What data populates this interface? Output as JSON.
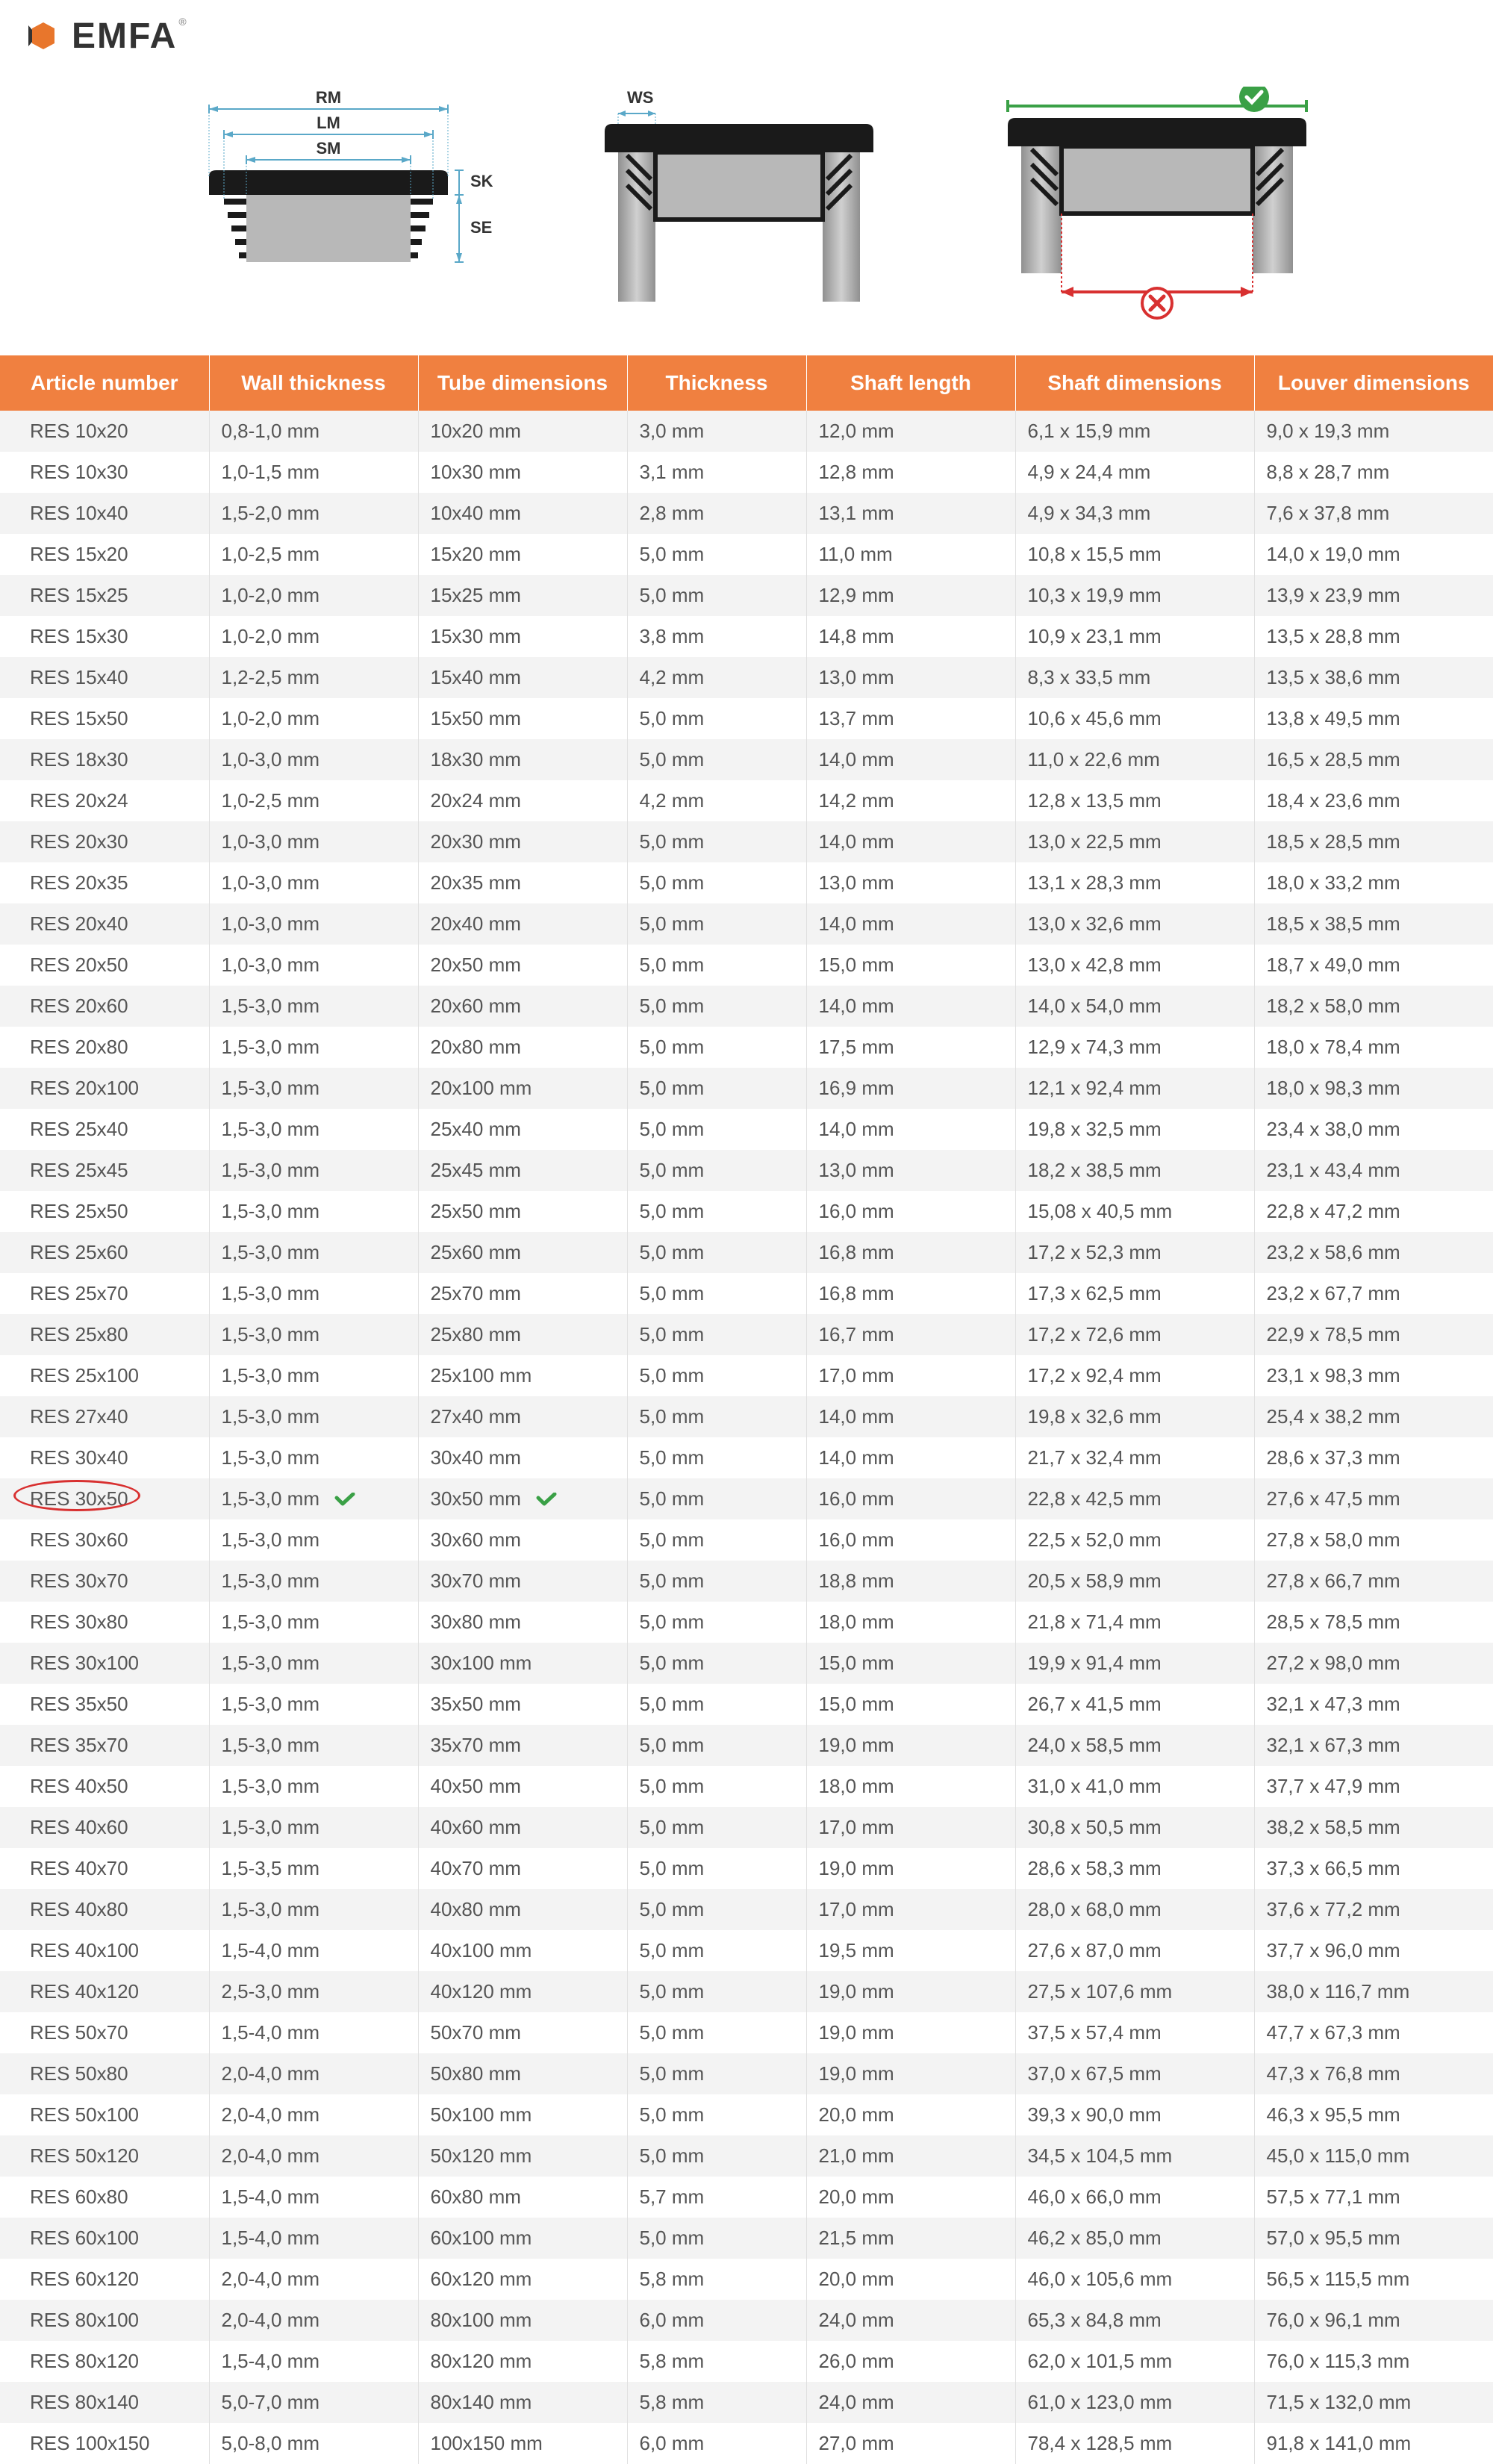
{
  "brand": {
    "name": "EMFA",
    "logo_primary_color": "#e8762c",
    "logo_dark_color": "#333333"
  },
  "diagram_labels": {
    "rm": "RM",
    "lm": "LM",
    "sm": "SM",
    "sk": "SK",
    "se": "SE",
    "ws": "WS"
  },
  "diagram_colors": {
    "cap_black": "#1a1a1a",
    "tube_gray": "#b8b8b8",
    "tube_gradient_light": "#d0d0d0",
    "tube_gradient_dark": "#909090",
    "dim_line_blue": "#5aa8c8",
    "check_green": "#3aa046",
    "cross_red": "#d83030",
    "arrow_red": "#d83030"
  },
  "table": {
    "header_bg": "#f08040",
    "header_fg": "#ffffff",
    "row_odd_bg": "#f3f3f3",
    "row_even_bg": "#ffffff",
    "border_color": "#e0e0e0",
    "highlight_color": "#d83030",
    "check_color": "#3aa046",
    "columns": [
      "Article number",
      "Wall thickness",
      "Tube dimensions",
      "Thickness",
      "Shaft length",
      "Shaft dimensions",
      "Louver dimensions"
    ],
    "highlighted_row_index": 25,
    "rows": [
      [
        "RES 10x20",
        "0,8-1,0 mm",
        "10x20 mm",
        "3,0 mm",
        "12,0 mm",
        "6,1 x 15,9 mm",
        "9,0 x 19,3 mm"
      ],
      [
        "RES 10x30",
        "1,0-1,5 mm",
        "10x30 mm",
        "3,1 mm",
        "12,8 mm",
        "4,9 x 24,4 mm",
        "8,8 x 28,7 mm"
      ],
      [
        "RES 10x40",
        "1,5-2,0 mm",
        "10x40 mm",
        "2,8 mm",
        "13,1 mm",
        "4,9 x 34,3 mm",
        "7,6 x 37,8 mm"
      ],
      [
        "RES 15x20",
        "1,0-2,5 mm",
        "15x20 mm",
        "5,0 mm",
        "11,0 mm",
        "10,8 x 15,5 mm",
        "14,0 x 19,0 mm"
      ],
      [
        "RES 15x25",
        "1,0-2,0 mm",
        "15x25 mm",
        "5,0 mm",
        "12,9 mm",
        "10,3 x 19,9 mm",
        "13,9 x 23,9 mm"
      ],
      [
        "RES 15x30",
        "1,0-2,0 mm",
        "15x30 mm",
        "3,8 mm",
        "14,8 mm",
        "10,9 x 23,1 mm",
        "13,5 x 28,8 mm"
      ],
      [
        "RES 15x40",
        "1,2-2,5 mm",
        "15x40 mm",
        "4,2 mm",
        "13,0 mm",
        "8,3 x 33,5 mm",
        "13,5 x 38,6 mm"
      ],
      [
        "RES 15x50",
        "1,0-2,0 mm",
        "15x50 mm",
        "5,0 mm",
        "13,7 mm",
        "10,6 x 45,6 mm",
        "13,8 x 49,5 mm"
      ],
      [
        "RES 18x30",
        "1,0-3,0 mm",
        "18x30 mm",
        "5,0 mm",
        "14,0 mm",
        "11,0 x 22,6 mm",
        "16,5 x 28,5 mm"
      ],
      [
        "RES 20x24",
        "1,0-2,5 mm",
        "20x24 mm",
        "4,2 mm",
        "14,2 mm",
        "12,8 x 13,5 mm",
        "18,4 x 23,6 mm"
      ],
      [
        "RES 20x30",
        "1,0-3,0 mm",
        "20x30 mm",
        "5,0 mm",
        "14,0 mm",
        "13,0 x 22,5 mm",
        "18,5 x 28,5 mm"
      ],
      [
        "RES 20x35",
        "1,0-3,0 mm",
        "20x35 mm",
        "5,0 mm",
        "13,0 mm",
        "13,1 x 28,3 mm",
        "18,0 x 33,2 mm"
      ],
      [
        "RES 20x40",
        "1,0-3,0 mm",
        "20x40 mm",
        "5,0 mm",
        "14,0 mm",
        "13,0 x 32,6 mm",
        "18,5 x 38,5 mm"
      ],
      [
        "RES 20x50",
        "1,0-3,0 mm",
        "20x50 mm",
        "5,0 mm",
        "15,0 mm",
        "13,0 x 42,8 mm",
        "18,7 x 49,0 mm"
      ],
      [
        "RES 20x60",
        "1,5-3,0 mm",
        "20x60 mm",
        "5,0 mm",
        "14,0 mm",
        "14,0 x 54,0 mm",
        "18,2 x 58,0 mm"
      ],
      [
        "RES 20x80",
        "1,5-3,0 mm",
        "20x80 mm",
        "5,0 mm",
        "17,5 mm",
        "12,9 x 74,3 mm",
        "18,0 x 78,4 mm"
      ],
      [
        "RES 20x100",
        "1,5-3,0 mm",
        "20x100 mm",
        "5,0 mm",
        "16,9 mm",
        "12,1 x 92,4 mm",
        "18,0 x 98,3 mm"
      ],
      [
        "RES 25x40",
        "1,5-3,0 mm",
        "25x40 mm",
        "5,0 mm",
        "14,0 mm",
        "19,8 x 32,5 mm",
        "23,4 x 38,0 mm"
      ],
      [
        "RES 25x45",
        "1,5-3,0 mm",
        "25x45 mm",
        "5,0 mm",
        "13,0 mm",
        "18,2 x 38,5 mm",
        "23,1 x 43,4 mm"
      ],
      [
        "RES 25x50",
        "1,5-3,0 mm",
        "25x50 mm",
        "5,0 mm",
        "16,0 mm",
        "15,08 x 40,5 mm",
        "22,8 x 47,2 mm"
      ],
      [
        "RES 25x60",
        "1,5-3,0 mm",
        "25x60 mm",
        "5,0 mm",
        "16,8 mm",
        "17,2 x 52,3 mm",
        "23,2 x 58,6 mm"
      ],
      [
        "RES 25x70",
        "1,5-3,0 mm",
        "25x70 mm",
        "5,0 mm",
        "16,8 mm",
        "17,3 x 62,5 mm",
        "23,2 x 67,7 mm"
      ],
      [
        "RES 25x80",
        "1,5-3,0 mm",
        "25x80 mm",
        "5,0 mm",
        "16,7 mm",
        "17,2 x 72,6 mm",
        "22,9 x 78,5 mm"
      ],
      [
        "RES 25x100",
        "1,5-3,0 mm",
        "25x100 mm",
        "5,0 mm",
        "17,0 mm",
        "17,2 x 92,4 mm",
        "23,1 x 98,3 mm"
      ],
      [
        "RES 27x40",
        "1,5-3,0 mm",
        "27x40 mm",
        "5,0 mm",
        "14,0 mm",
        "19,8 x 32,6 mm",
        "25,4 x 38,2 mm"
      ],
      [
        "RES 30x40",
        "1,5-3,0 mm",
        "30x40 mm",
        "5,0 mm",
        "14,0 mm",
        "21,7 x 32,4 mm",
        "28,6 x 37,3 mm"
      ],
      [
        "RES 30x50",
        "1,5-3,0 mm",
        "30x50 mm",
        "5,0 mm",
        "16,0 mm",
        "22,8 x 42,5 mm",
        "27,6 x 47,5 mm"
      ],
      [
        "RES 30x60",
        "1,5-3,0 mm",
        "30x60 mm",
        "5,0 mm",
        "16,0 mm",
        "22,5 x 52,0 mm",
        "27,8 x 58,0 mm"
      ],
      [
        "RES 30x70",
        "1,5-3,0 mm",
        "30x70 mm",
        "5,0 mm",
        "18,8 mm",
        "20,5 x 58,9 mm",
        "27,8 x 66,7 mm"
      ],
      [
        "RES 30x80",
        "1,5-3,0 mm",
        "30x80 mm",
        "5,0 mm",
        "18,0 mm",
        "21,8 x 71,4 mm",
        "28,5 x 78,5 mm"
      ],
      [
        "RES 30x100",
        "1,5-3,0 mm",
        "30x100 mm",
        "5,0 mm",
        "15,0 mm",
        "19,9 x 91,4 mm",
        "27,2 x 98,0 mm"
      ],
      [
        "RES 35x50",
        "1,5-3,0 mm",
        "35x50 mm",
        "5,0 mm",
        "15,0 mm",
        "26,7 x 41,5 mm",
        "32,1 x 47,3 mm"
      ],
      [
        "RES 35x70",
        "1,5-3,0 mm",
        "35x70 mm",
        "5,0 mm",
        "19,0 mm",
        "24,0 x 58,5 mm",
        "32,1 x 67,3 mm"
      ],
      [
        "RES 40x50",
        "1,5-3,0 mm",
        "40x50 mm",
        "5,0 mm",
        "18,0 mm",
        "31,0 x 41,0 mm",
        "37,7 x 47,9 mm"
      ],
      [
        "RES 40x60",
        "1,5-3,0 mm",
        "40x60 mm",
        "5,0 mm",
        "17,0 mm",
        "30,8 x 50,5 mm",
        "38,2 x 58,5 mm"
      ],
      [
        "RES 40x70",
        "1,5-3,5 mm",
        "40x70 mm",
        "5,0 mm",
        "19,0 mm",
        "28,6 x 58,3 mm",
        "37,3 x 66,5 mm"
      ],
      [
        "RES 40x80",
        "1,5-3,0 mm",
        "40x80 mm",
        "5,0 mm",
        "17,0 mm",
        "28,0 x 68,0 mm",
        "37,6 x 77,2 mm"
      ],
      [
        "RES 40x100",
        "1,5-4,0 mm",
        "40x100 mm",
        "5,0 mm",
        "19,5 mm",
        "27,6 x 87,0 mm",
        "37,7 x 96,0 mm"
      ],
      [
        "RES 40x120",
        "2,5-3,0 mm",
        "40x120 mm",
        "5,0 mm",
        "19,0 mm",
        "27,5 x 107,6 mm",
        "38,0 x 116,7 mm"
      ],
      [
        "RES 50x70",
        "1,5-4,0 mm",
        "50x70 mm",
        "5,0 mm",
        "19,0 mm",
        "37,5 x 57,4 mm",
        "47,7 x 67,3 mm"
      ],
      [
        "RES 50x80",
        "2,0-4,0 mm",
        "50x80 mm",
        "5,0 mm",
        "19,0 mm",
        "37,0 x 67,5 mm",
        "47,3 x 76,8 mm"
      ],
      [
        "RES 50x100",
        "2,0-4,0 mm",
        "50x100 mm",
        "5,0 mm",
        "20,0 mm",
        "39,3 x 90,0 mm",
        "46,3 x 95,5 mm"
      ],
      [
        "RES 50x120",
        "2,0-4,0 mm",
        "50x120 mm",
        "5,0 mm",
        "21,0 mm",
        "34,5 x 104,5 mm",
        "45,0 x 115,0 mm"
      ],
      [
        "RES 60x80",
        "1,5-4,0 mm",
        "60x80 mm",
        "5,7 mm",
        "20,0 mm",
        "46,0 x 66,0 mm",
        "57,5 x 77,1 mm"
      ],
      [
        "RES 60x100",
        "1,5-4,0 mm",
        "60x100 mm",
        "5,0 mm",
        "21,5 mm",
        "46,2 x 85,0 mm",
        "57,0 x 95,5 mm"
      ],
      [
        "RES 60x120",
        "2,0-4,0 mm",
        "60x120 mm",
        "5,8 mm",
        "20,0 mm",
        "46,0 x 105,6 mm",
        "56,5 x 115,5 mm"
      ],
      [
        "RES 80x100",
        "2,0-4,0 mm",
        "80x100 mm",
        "6,0 mm",
        "24,0 mm",
        "65,3 x 84,8 mm",
        "76,0 x 96,1 mm"
      ],
      [
        "RES 80x120",
        "1,5-4,0 mm",
        "80x120 mm",
        "5,8 mm",
        "26,0 mm",
        "62,0 x 101,5 mm",
        "76,0 x 115,3 mm"
      ],
      [
        "RES 80x140",
        "5,0-7,0 mm",
        "80x140 mm",
        "5,8 mm",
        "24,0 mm",
        "61,0 x 123,0 mm",
        "71,5 x 132,0 mm"
      ],
      [
        "RES 100x150",
        "5,0-8,0 mm",
        "100x150 mm",
        "6,0 mm",
        "27,0 mm",
        "78,4 x 128,5 mm",
        "91,8 x 141,0 mm"
      ]
    ]
  }
}
